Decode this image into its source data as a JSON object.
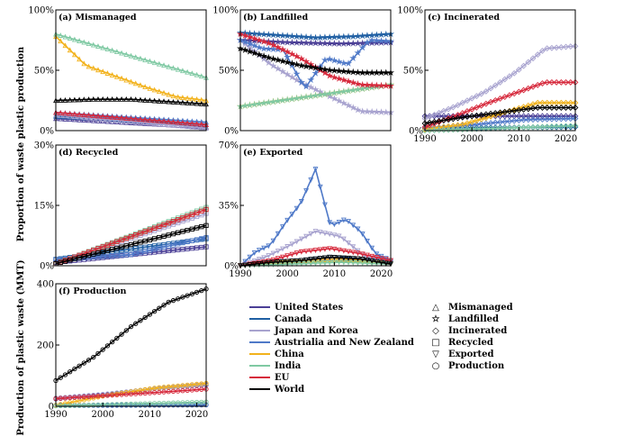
{
  "figure": {
    "ylabel_top": "Proportion of waste plastic production",
    "ylabel_bottom": "Production of plastic waste (MMT)"
  },
  "series_styles": [
    {
      "name": "United States",
      "color": "#4b3f96"
    },
    {
      "name": "Canada",
      "color": "#1f5fa3"
    },
    {
      "name": "Japan and Korea",
      "color": "#a8a3cf"
    },
    {
      "name": "Austrialia and New Zealand",
      "color": "#4f79c8"
    },
    {
      "name": "China",
      "color": "#f2b21c"
    },
    {
      "name": "India",
      "color": "#7fc9a3"
    },
    {
      "name": "EU",
      "color": "#d6283b"
    },
    {
      "name": "World",
      "color": "#000000"
    }
  ],
  "marker_legend": [
    {
      "symbol": "△",
      "label": "Mismanaged"
    },
    {
      "symbol": "☆",
      "label": "Landfilled"
    },
    {
      "symbol": "◇",
      "label": "Incinerated"
    },
    {
      "symbol": "□",
      "label": "Recycled"
    },
    {
      "symbol": "▽",
      "label": "Exported"
    },
    {
      "symbol": "○",
      "label": "Production"
    }
  ],
  "chart_data": [
    {
      "type": "line",
      "title": "(a) Mismanaged",
      "ylim": [
        0,
        100
      ],
      "ytick_labels": [
        "0%",
        "50%",
        "100%"
      ],
      "x_start": 1990,
      "x_end": 2022,
      "series": [
        {
          "name": "United States",
          "values": [
            10,
            3
          ]
        },
        {
          "name": "Canada",
          "values": [
            12,
            5
          ]
        },
        {
          "name": "Japan and Korea",
          "values": [
            13,
            2
          ]
        },
        {
          "name": "Austrialia and New Zealand",
          "values": [
            15,
            7
          ]
        },
        {
          "name": "China",
          "values": [
            78,
            54,
            45,
            36,
            28,
            25
          ]
        },
        {
          "name": "India",
          "values": [
            80,
            44
          ]
        },
        {
          "name": "EU",
          "values": [
            15,
            5
          ]
        },
        {
          "name": "World",
          "values": [
            25,
            26,
            26,
            24,
            22
          ]
        }
      ]
    },
    {
      "type": "line",
      "title": "(b) Landfilled",
      "ylim": [
        0,
        100
      ],
      "ytick_labels": [
        "0%",
        "50%",
        "100%"
      ],
      "x_start": 1990,
      "x_end": 2022,
      "series": [
        {
          "name": "United States",
          "values": [
            75,
            73,
            72,
            73
          ]
        },
        {
          "name": "Canada",
          "values": [
            81,
            79,
            77,
            78,
            80
          ]
        },
        {
          "name": "Japan and Korea",
          "values": [
            75,
            55,
            40,
            28,
            16,
            15
          ]
        },
        {
          "name": "Austrialia and New Zealand",
          "values": [
            75,
            68,
            67,
            35,
            60,
            55,
            75,
            74
          ]
        },
        {
          "name": "China",
          "values": [
            20,
            38
          ]
        },
        {
          "name": "India",
          "values": [
            20,
            38
          ]
        },
        {
          "name": "EU",
          "values": [
            80,
            72,
            60,
            45,
            38,
            37
          ]
        },
        {
          "name": "World",
          "values": [
            68,
            60,
            54,
            50,
            48,
            48
          ]
        }
      ]
    },
    {
      "type": "line",
      "title": "(c) Incinerated",
      "ylim": [
        0,
        100
      ],
      "ytick_labels": [
        "0%",
        "50%",
        "100%"
      ],
      "x_start": 1990,
      "x_end": 2022,
      "xtick_labels": [
        "1990",
        "2000",
        "2010",
        "2020"
      ],
      "series": [
        {
          "name": "United States",
          "values": [
            12,
            12
          ]
        },
        {
          "name": "Canada",
          "values": [
            2,
            3
          ]
        },
        {
          "name": "Japan and Korea",
          "values": [
            10,
            20,
            32,
            48,
            68,
            70
          ]
        },
        {
          "name": "Austrialia and New Zealand",
          "values": [
            2,
            5,
            9,
            10
          ]
        },
        {
          "name": "China",
          "values": [
            1,
            5,
            14,
            23,
            23
          ]
        },
        {
          "name": "India",
          "values": [
            0,
            4
          ]
        },
        {
          "name": "EU",
          "values": [
            3,
            12,
            22,
            31,
            40,
            40
          ]
        },
        {
          "name": "World",
          "values": [
            6,
            11,
            15,
            19,
            19
          ]
        }
      ]
    },
    {
      "type": "line",
      "title": "(d) Recycled",
      "ylim": [
        0,
        30
      ],
      "ytick_labels": [
        "0%",
        "15%",
        "30%"
      ],
      "x_start": 1990,
      "x_end": 2022,
      "series": [
        {
          "name": "United States",
          "values": [
            0.8,
            4.7
          ]
        },
        {
          "name": "Canada",
          "values": [
            1.6,
            6.7
          ]
        },
        {
          "name": "Japan and Korea",
          "values": [
            0.5,
            13
          ]
        },
        {
          "name": "Austrialia and New Zealand",
          "values": [
            1.5,
            2.8,
            7
          ]
        },
        {
          "name": "China",
          "values": [
            0.5,
            14
          ]
        },
        {
          "name": "India",
          "values": [
            0.5,
            14.5
          ]
        },
        {
          "name": "EU",
          "values": [
            0.5,
            14
          ]
        },
        {
          "name": "World",
          "values": [
            0.5,
            10
          ]
        }
      ]
    },
    {
      "type": "line",
      "title": "(e) Exported",
      "ylim": [
        0,
        70
      ],
      "ytick_labels": [
        "0%",
        "35%",
        "70%"
      ],
      "x_start": 1990,
      "x_end": 2022,
      "xtick_labels": [
        "1990",
        "2000",
        "2010",
        "2020"
      ],
      "series": [
        {
          "name": "United States",
          "values": [
            0,
            1,
            2,
            3,
            2,
            1
          ]
        },
        {
          "name": "Canada",
          "values": [
            0,
            2,
            3,
            5,
            3,
            2
          ]
        },
        {
          "name": "Japan and Korea",
          "values": [
            0,
            5,
            12,
            20,
            17,
            5,
            3
          ]
        },
        {
          "name": "Austrialia and New Zealand",
          "values": [
            0,
            8,
            12,
            25,
            36,
            56,
            23,
            27,
            20,
            7,
            3
          ]
        },
        {
          "name": "China",
          "values": [
            0,
            2,
            3,
            1
          ]
        },
        {
          "name": "India",
          "values": [
            0,
            1,
            2,
            1
          ]
        },
        {
          "name": "EU",
          "values": [
            0,
            3,
            8,
            10,
            7,
            3
          ]
        },
        {
          "name": "World",
          "values": [
            0,
            2,
            3,
            5,
            4,
            1
          ]
        }
      ]
    },
    {
      "type": "line",
      "title": "(f) Production",
      "ylim": [
        0,
        400
      ],
      "ytick_labels": [
        "0",
        "200",
        "400"
      ],
      "x_start": 1990,
      "x_end": 2022,
      "xtick_labels": [
        "1990",
        "2000",
        "2010",
        "2020"
      ],
      "series": [
        {
          "name": "United States",
          "values": [
            24,
            38,
            58,
            70
          ]
        },
        {
          "name": "Canada",
          "values": [
            3,
            5
          ]
        },
        {
          "name": "Japan and Korea",
          "values": [
            27,
            40,
            58,
            72
          ]
        },
        {
          "name": "Austrialia and New Zealand",
          "values": [
            2,
            4
          ]
        },
        {
          "name": "China",
          "values": [
            3,
            35,
            60,
            75
          ]
        },
        {
          "name": "India",
          "values": [
            1,
            14
          ]
        },
        {
          "name": "EU",
          "values": [
            25,
            35,
            45,
            56
          ]
        },
        {
          "name": "World",
          "values": [
            84,
            160,
            260,
            340,
            383
          ]
        }
      ]
    }
  ]
}
